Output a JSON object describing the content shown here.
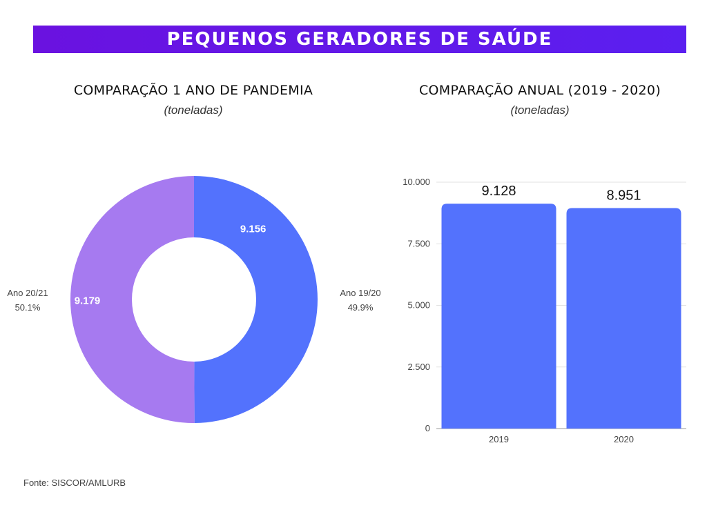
{
  "banner": {
    "title": "PEQUENOS GERADORES DE SAÚDE",
    "color": "#5b14ec"
  },
  "source": "Fonte: SISCOR/AMLURB",
  "chart_data": [
    {
      "type": "pie",
      "title": "COMPARAÇÃO 1 ANO DE PANDEMIA",
      "subtitle": "(toneladas)",
      "slices": [
        {
          "label": "Ano 19/20",
          "value": 9156,
          "display": "9.156",
          "percent": "49.9%",
          "color": "#5372fd"
        },
        {
          "label": "Ano 20/21",
          "value": 9179,
          "display": "9.179",
          "percent": "50.1%",
          "color": "#a67af0"
        }
      ]
    },
    {
      "type": "bar",
      "title": "COMPARAÇÃO ANUAL (2019 - 2020)",
      "subtitle": "(toneladas)",
      "categories": [
        "2019",
        "2020"
      ],
      "values": [
        9128,
        8951
      ],
      "value_labels": [
        "9.128",
        "8.951"
      ],
      "ylim": [
        0,
        10000
      ],
      "yticks": [
        0,
        2500,
        5000,
        7500,
        10000
      ],
      "ytick_labels": [
        "0",
        "2.500",
        "5.000",
        "7.500",
        "10.000"
      ],
      "bar_color": "#5372fd",
      "grid": true
    }
  ]
}
